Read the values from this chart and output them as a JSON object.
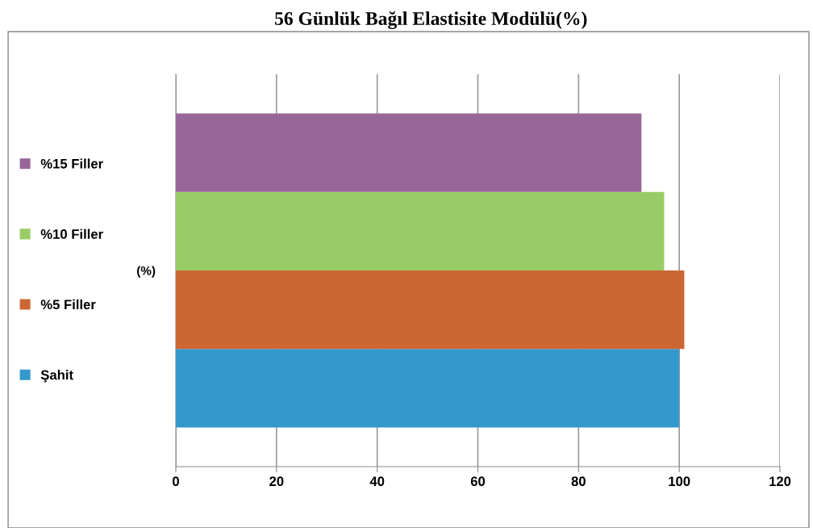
{
  "chart_data": {
    "type": "bar",
    "orientation": "horizontal",
    "title": "56 Günlük Bağıl Elastisite Modülü(%)",
    "categories": [
      "(%)"
    ],
    "series": [
      {
        "name": "Şahit",
        "color": "#3399cc",
        "values": [
          100
        ]
      },
      {
        "name": "%5 Filler",
        "color": "#cc6633",
        "values": [
          101
        ]
      },
      {
        "name": "%10 Filler",
        "color": "#99cc66",
        "values": [
          97
        ]
      },
      {
        "name": "%15 Filler",
        "color": "#996699",
        "values": [
          92.5
        ]
      }
    ],
    "xlim": [
      0,
      120
    ],
    "xticks": [
      0,
      20,
      40,
      60,
      80,
      100,
      120
    ],
    "grid": "x",
    "legend": "left"
  }
}
